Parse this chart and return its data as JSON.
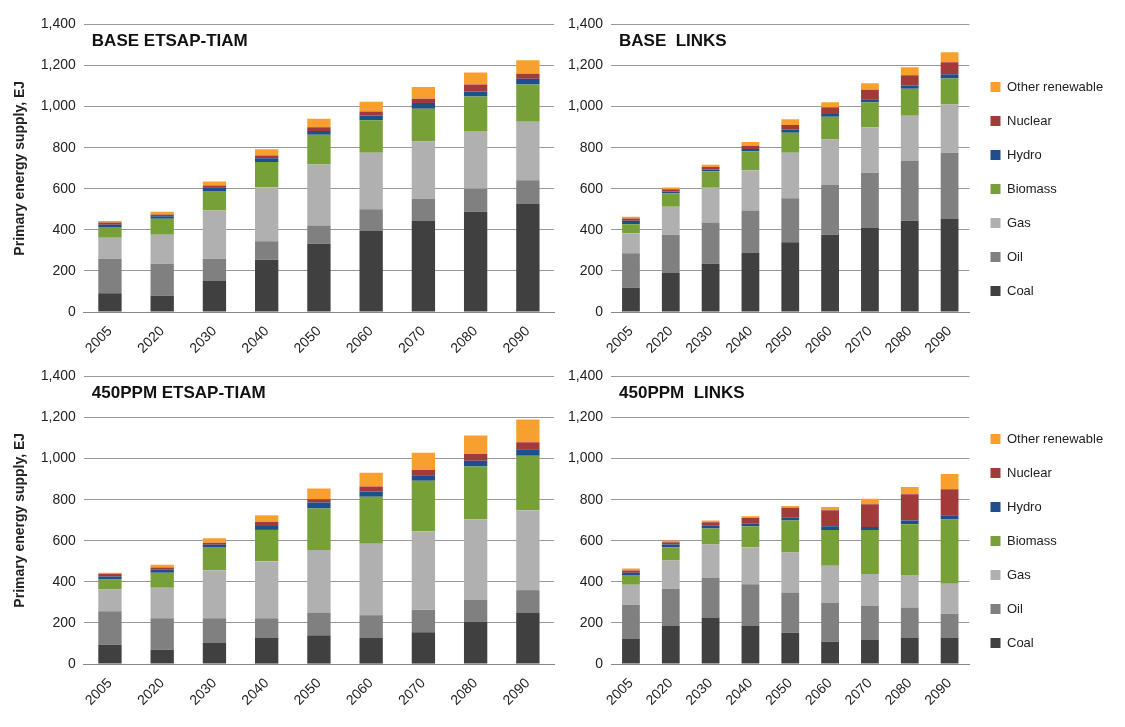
{
  "chart_data": [
    {
      "type": "bar",
      "title": "BASE ETSAP-TIAM",
      "ylabel": "Primary energy supply, EJ",
      "stacked": true,
      "grid": "y",
      "legend": false,
      "categories": [
        "2005",
        "2020",
        "2030",
        "2040",
        "2050",
        "2060",
        "2070",
        "2080",
        "2090"
      ],
      "ylim": [
        0,
        1400
      ],
      "yticks": [
        {
          "value": 0,
          "label": "0"
        },
        {
          "value": 200,
          "label": "200"
        },
        {
          "value": 400,
          "label": "400"
        },
        {
          "value": 600,
          "label": "600"
        },
        {
          "value": 800,
          "label": "800"
        },
        {
          "value": 1000,
          "label": "1,000"
        },
        {
          "value": 1200,
          "label": "1,200"
        },
        {
          "value": 1400,
          "label": "1,400"
        }
      ],
      "series": [
        {
          "color": "#404040",
          "values": [
            92,
            80,
            151,
            255,
            333,
            397,
            443,
            488,
            526
          ]
        },
        {
          "color": "#808080",
          "values": [
            168,
            155,
            109,
            90,
            89,
            103,
            108,
            112,
            115
          ]
        },
        {
          "color": "#b0b0b0",
          "values": [
            102,
            141,
            235,
            263,
            296,
            275,
            279,
            281,
            285
          ]
        },
        {
          "color": "#77a038",
          "values": [
            52,
            78,
            94,
            122,
            145,
            158,
            159,
            168,
            182
          ]
        },
        {
          "color": "#1f4e8c",
          "values": [
            11,
            13,
            19,
            19,
            18,
            24,
            28,
            25,
            27
          ]
        },
        {
          "color": "#a33a3a",
          "values": [
            11,
            8,
            8,
            13,
            19,
            19,
            21,
            34,
            25
          ]
        },
        {
          "color": "#f7a030",
          "values": [
            7,
            13,
            20,
            30,
            41,
            47,
            57,
            58,
            65
          ]
        }
      ]
    },
    {
      "type": "bar",
      "title": "BASE  LINKS",
      "stacked": true,
      "grid": "y",
      "legend": "right",
      "categories": [
        "2005",
        "2020",
        "2030",
        "2040",
        "2050",
        "2060",
        "2070",
        "2080",
        "2090"
      ],
      "ylim": [
        0,
        1400
      ],
      "yticks": [
        {
          "value": 0,
          "label": "0"
        },
        {
          "value": 200,
          "label": "200"
        },
        {
          "value": 400,
          "label": "400"
        },
        {
          "value": 600,
          "label": "600"
        },
        {
          "value": 800,
          "label": "800"
        },
        {
          "value": 1000,
          "label": "1,000"
        },
        {
          "value": 1200,
          "label": "1,200"
        },
        {
          "value": 1400,
          "label": "1,400"
        }
      ],
      "series": [
        {
          "name": "Coal",
          "color": "#404040",
          "values": [
            118,
            190,
            235,
            288,
            340,
            377,
            412,
            444,
            456
          ]
        },
        {
          "name": "Oil",
          "color": "#808080",
          "values": [
            168,
            186,
            201,
            207,
            214,
            242,
            266,
            291,
            319
          ]
        },
        {
          "name": "Gas",
          "color": "#b0b0b0",
          "values": [
            98,
            137,
            169,
            195,
            221,
            221,
            221,
            221,
            235
          ]
        },
        {
          "name": "Biomass",
          "color": "#77a038",
          "values": [
            44,
            65,
            80,
            93,
            98,
            111,
            122,
            131,
            127
          ]
        },
        {
          "name": "Hydro",
          "color": "#1f4e8c",
          "values": [
            16,
            9,
            9,
            11,
            16,
            13,
            15,
            16,
            20
          ]
        },
        {
          "name": "Nuclear",
          "color": "#a33a3a",
          "values": [
            12,
            11,
            12,
            16,
            21,
            33,
            46,
            49,
            59
          ]
        },
        {
          "name": "Other renewable",
          "color": "#f7a030",
          "values": [
            8,
            8,
            11,
            18,
            28,
            24,
            32,
            39,
            49
          ]
        }
      ]
    },
    {
      "type": "bar",
      "title": "450PPM ETSAP-TIAM",
      "ylabel": "Primary energy supply, EJ",
      "stacked": true,
      "grid": "y",
      "legend": false,
      "categories": [
        "2005",
        "2020",
        "2030",
        "2040",
        "2050",
        "2060",
        "2070",
        "2080",
        "2090"
      ],
      "ylim": [
        0,
        1400
      ],
      "yticks": [
        {
          "value": 0,
          "label": "0"
        },
        {
          "value": 200,
          "label": "200"
        },
        {
          "value": 400,
          "label": "400"
        },
        {
          "value": 600,
          "label": "600"
        },
        {
          "value": 800,
          "label": "800"
        },
        {
          "value": 1000,
          "label": "1,000"
        },
        {
          "value": 1200,
          "label": "1,200"
        },
        {
          "value": 1400,
          "label": "1,400"
        }
      ],
      "series": [
        {
          "color": "#404040",
          "values": [
            94,
            70,
            103,
            127,
            140,
            127,
            155,
            205,
            251
          ]
        },
        {
          "color": "#808080",
          "values": [
            163,
            153,
            120,
            96,
            109,
            111,
            109,
            109,
            109
          ]
        },
        {
          "color": "#b0b0b0",
          "values": [
            106,
            148,
            234,
            278,
            306,
            348,
            382,
            391,
            389
          ]
        },
        {
          "color": "#77a038",
          "values": [
            49,
            73,
            113,
            152,
            202,
            228,
            246,
            257,
            265
          ]
        },
        {
          "color": "#1f4e8c",
          "values": [
            14,
            15,
            11,
            19,
            29,
            26,
            27,
            28,
            32
          ]
        },
        {
          "color": "#a33a3a",
          "values": [
            12,
            11,
            10,
            20,
            16,
            24,
            25,
            32,
            33
          ]
        },
        {
          "color": "#f7a030",
          "values": [
            6,
            13,
            21,
            32,
            52,
            67,
            84,
            91,
            111
          ]
        }
      ]
    },
    {
      "type": "bar",
      "title": "450PPM  LINKS",
      "stacked": true,
      "grid": "y",
      "legend": "right",
      "categories": [
        "2005",
        "2020",
        "2030",
        "2040",
        "2050",
        "2060",
        "2070",
        "2080",
        "2090"
      ],
      "ylim": [
        0,
        1400
      ],
      "yticks": [
        {
          "value": 0,
          "label": "0"
        },
        {
          "value": 200,
          "label": "200"
        },
        {
          "value": 400,
          "label": "400"
        },
        {
          "value": 600,
          "label": "600"
        },
        {
          "value": 800,
          "label": "800"
        },
        {
          "value": 1000,
          "label": "1,000"
        },
        {
          "value": 1200,
          "label": "1,200"
        },
        {
          "value": 1400,
          "label": "1,400"
        }
      ],
      "series": [
        {
          "name": "Coal",
          "color": "#404040",
          "values": [
            122,
            186,
            227,
            186,
            153,
            109,
            117,
            129,
            127
          ]
        },
        {
          "name": "Oil",
          "color": "#808080",
          "values": [
            167,
            181,
            192,
            202,
            196,
            188,
            166,
            146,
            118
          ]
        },
        {
          "name": "Gas",
          "color": "#b0b0b0",
          "values": [
            97,
            137,
            163,
            181,
            194,
            182,
            155,
            159,
            146
          ]
        },
        {
          "name": "Biomass",
          "color": "#77a038",
          "values": [
            48,
            65,
            78,
            102,
            156,
            174,
            215,
            246,
            313
          ]
        },
        {
          "name": "Hydro",
          "color": "#1f4e8c",
          "values": [
            11,
            13,
            13,
            12,
            13,
            18,
            14,
            19,
            20
          ]
        },
        {
          "name": "Nuclear",
          "color": "#a33a3a",
          "values": [
            11,
            11,
            17,
            29,
            49,
            78,
            111,
            128,
            127
          ]
        },
        {
          "name": "Other renewable",
          "color": "#f7a030",
          "values": [
            9,
            8,
            9,
            8,
            8,
            15,
            27,
            35,
            74
          ]
        }
      ]
    }
  ]
}
